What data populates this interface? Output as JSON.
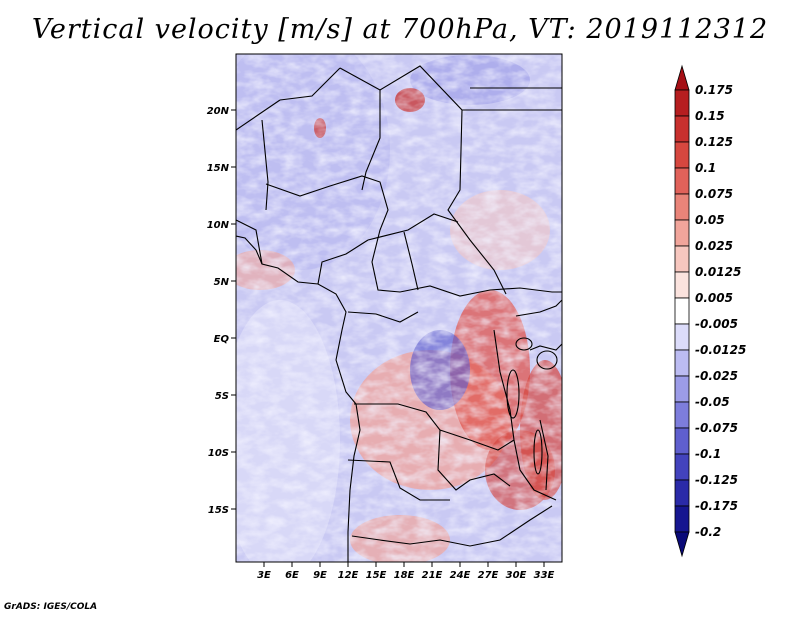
{
  "title": "Vertical velocity [m/s] at 700hPa, VT: 2019112312",
  "credit": "GrADS: IGES/COLA",
  "map": {
    "lat_ticks": [
      "20N",
      "15N",
      "10N",
      "5N",
      "EQ",
      "5S",
      "10S",
      "15S"
    ],
    "lon_ticks": [
      "3E",
      "6E",
      "9E",
      "12E",
      "15E",
      "18E",
      "21E",
      "24E",
      "27E",
      "30E",
      "33E"
    ]
  },
  "colorbar": {
    "labels": [
      "0.175",
      "0.15",
      "0.125",
      "0.1",
      "0.075",
      "0.05",
      "0.025",
      "0.0125",
      "0.005",
      "-0.005",
      "-0.0125",
      "-0.025",
      "-0.05",
      "-0.075",
      "-0.1",
      "-0.125",
      "-0.175",
      "-0.2"
    ],
    "colors": [
      "#a50f15",
      "#b61e20",
      "#c8302e",
      "#d6473f",
      "#e1625a",
      "#e98479",
      "#f1a59b",
      "#f7c7bf",
      "#fbe3de",
      "#ffffff",
      "#dcdcfa",
      "#bcbcf2",
      "#9c9ce8",
      "#7d7ddc",
      "#5f5fce",
      "#4343bd",
      "#2a2aa8",
      "#161690",
      "#0a0a78"
    ]
  }
}
